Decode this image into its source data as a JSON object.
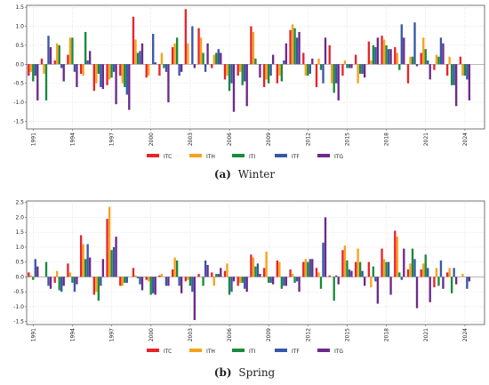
{
  "chart_data": [
    {
      "type": "bar",
      "panel_label": "(a)",
      "caption": "Winter",
      "ylim": [
        -1.7,
        1.55
      ],
      "yticks": [
        "-1.5",
        "-1.0",
        "-0.5",
        "0.0",
        "0.5",
        "1.0",
        "1.5"
      ],
      "ytick_values": [
        -1.5,
        -1.0,
        -0.5,
        0.0,
        0.5,
        1.0,
        1.5
      ],
      "grid": true,
      "legend_position": "bottom-center",
      "categories": [
        1991,
        1992,
        1993,
        1994,
        1995,
        1996,
        1997,
        1998,
        1999,
        2000,
        2001,
        2002,
        2003,
        2004,
        2005,
        2006,
        2007,
        2008,
        2009,
        2010,
        2011,
        2012,
        2013,
        2014,
        2015,
        2016,
        2017,
        2018,
        2019,
        2020,
        2021,
        2022,
        2023,
        2024,
        2025
      ],
      "xtick_labels": [
        "1991",
        "1994",
        "1997",
        "2000",
        "2003",
        "2006",
        "2009",
        "2012",
        "2015",
        "2018",
        "2021",
        "2024"
      ],
      "series": [
        {
          "name": "ITC",
          "color": "#e8242a",
          "values": [
            -0.3,
            0.15,
            0.1,
            0.25,
            -0.25,
            -0.7,
            -0.55,
            -0.3,
            1.25,
            -0.35,
            -0.3,
            0.45,
            1.45,
            0.95,
            -0.1,
            -0.4,
            -0.3,
            1.0,
            -0.6,
            -0.5,
            0.9,
            0.3,
            -0.6,
            0.5,
            -0.3,
            0.25,
            0.6,
            0.75,
            0.45,
            -0.5,
            0.3,
            -0.15,
            -0.3,
            0.2,
            0.0
          ]
        },
        {
          "name": "ITH",
          "color": "#f7a21b",
          "values": [
            -0.2,
            -0.25,
            0.55,
            0.7,
            -0.3,
            -0.5,
            -0.4,
            -0.5,
            0.65,
            -0.3,
            0.3,
            0.55,
            0.55,
            0.7,
            0.25,
            -0.3,
            -0.2,
            0.85,
            -0.4,
            -0.3,
            1.05,
            -0.3,
            0.15,
            -0.5,
            0.1,
            -0.5,
            0.1,
            0.65,
            0.3,
            0.2,
            0.7,
            0.25,
            0.2,
            -0.3,
            0.0
          ]
        },
        {
          "name": "ITI",
          "color": "#1b8a3a",
          "values": [
            -0.45,
            -0.95,
            0.5,
            0.7,
            0.85,
            -0.25,
            -0.35,
            -0.6,
            0.3,
            0.0,
            -0.1,
            0.7,
            0.0,
            0.3,
            0.3,
            -0.7,
            -0.55,
            0.15,
            -0.5,
            -0.45,
            0.95,
            -0.3,
            -0.15,
            -0.75,
            -0.1,
            -0.25,
            0.5,
            0.5,
            -0.15,
            0.2,
            0.4,
            0.2,
            -0.55,
            -0.3,
            0.0
          ]
        },
        {
          "name": "ITF",
          "color": "#3658a8",
          "values": [
            -0.3,
            0.75,
            -0.1,
            -0.2,
            0.1,
            -0.6,
            -0.2,
            -0.8,
            0.35,
            0.8,
            -0.2,
            -0.3,
            1.0,
            -0.2,
            0.4,
            -0.5,
            -0.45,
            0.0,
            -0.3,
            0.1,
            0.7,
            -0.25,
            -0.5,
            -0.5,
            -0.1,
            -0.25,
            0.45,
            0.4,
            1.05,
            1.1,
            0.1,
            0.7,
            -0.55,
            -0.4,
            0.0
          ]
        },
        {
          "name": "ITG",
          "color": "#6d2a8a",
          "values": [
            -0.95,
            0.45,
            -0.45,
            -0.6,
            0.35,
            -0.65,
            -1.05,
            -1.2,
            0.55,
            0.05,
            -1.0,
            -0.2,
            -0.1,
            0.55,
            0.3,
            -1.25,
            -1.1,
            -0.35,
            0.25,
            0.55,
            0.85,
            0.15,
            0.7,
            -0.95,
            -0.1,
            -0.35,
            0.7,
            0.4,
            0.7,
            -0.05,
            -0.4,
            0.55,
            -1.1,
            -0.95,
            0.0
          ]
        }
      ]
    },
    {
      "type": "bar",
      "panel_label": "(b)",
      "caption": "Spring",
      "ylim": [
        -1.6,
        2.55
      ],
      "yticks": [
        "-1.5",
        "-1.0",
        "-0.5",
        "0.0",
        "0.5",
        "1.0",
        "1.5",
        "2.0",
        "2.5"
      ],
      "ytick_values": [
        -1.5,
        -1.0,
        -0.5,
        0.0,
        0.5,
        1.0,
        1.5,
        2.0,
        2.5
      ],
      "grid": true,
      "legend_position": "bottom-center",
      "categories": [
        1991,
        1992,
        1993,
        1994,
        1995,
        1996,
        1997,
        1998,
        1999,
        2000,
        2001,
        2002,
        2003,
        2004,
        2005,
        2006,
        2007,
        2008,
        2009,
        2010,
        2011,
        2012,
        2013,
        2014,
        2015,
        2016,
        2017,
        2018,
        2019,
        2020,
        2021,
        2022,
        2023,
        2024,
        2025
      ],
      "xtick_labels": [
        "1991",
        "1994",
        "1997",
        "2000",
        "2003",
        "2006",
        "2009",
        "2012",
        "2015",
        "2018",
        "2021",
        "2024"
      ],
      "series": [
        {
          "name": "ITC",
          "color": "#e8242a",
          "values": [
            0.15,
            0.0,
            -0.2,
            0.45,
            1.4,
            -0.6,
            1.95,
            -0.3,
            0.3,
            -0.1,
            0.05,
            0.25,
            -0.15,
            0.1,
            0.15,
            0.2,
            -0.3,
            0.75,
            0.3,
            0.55,
            0.25,
            0.5,
            0.3,
            0.05,
            0.9,
            0.5,
            0.5,
            0.95,
            1.55,
            0.25,
            0.25,
            -0.35,
            0.15,
            0.0,
            0.0
          ]
        },
        {
          "name": "ITH",
          "color": "#f7a21b",
          "values": [
            0.05,
            0.0,
            0.2,
            0.15,
            1.1,
            -0.5,
            2.35,
            -0.3,
            0.05,
            -0.15,
            0.1,
            0.65,
            -0.1,
            0.0,
            -0.3,
            0.45,
            -0.2,
            0.65,
            0.85,
            0.5,
            0.1,
            0.6,
            0.15,
            0.0,
            1.05,
            0.95,
            -0.35,
            0.6,
            1.35,
            0.45,
            0.45,
            0.3,
            0.3,
            0.1,
            0.0
          ]
        },
        {
          "name": "ITI",
          "color": "#1b8a3a",
          "values": [
            -0.1,
            0.5,
            -0.45,
            -0.2,
            0.6,
            -0.8,
            0.9,
            -0.2,
            -0.05,
            -0.6,
            0.0,
            0.55,
            -0.3,
            -0.3,
            0.1,
            -0.6,
            -0.2,
            0.35,
            -0.2,
            -0.4,
            -0.2,
            0.5,
            -0.4,
            -0.8,
            0.55,
            0.5,
            0.35,
            0.5,
            0.15,
            0.95,
            0.75,
            -0.3,
            -0.55,
            0.0,
            0.0
          ]
        },
        {
          "name": "ITF",
          "color": "#3658a8",
          "values": [
            0.6,
            -0.3,
            -0.5,
            -0.5,
            1.1,
            -0.3,
            1.0,
            -0.2,
            -0.25,
            -0.55,
            -0.3,
            -0.3,
            -0.5,
            0.55,
            0.1,
            -0.5,
            -0.4,
            0.45,
            -0.2,
            -0.3,
            -0.15,
            0.6,
            1.15,
            0.05,
            0.25,
            0.2,
            -0.15,
            0.5,
            -0.1,
            0.6,
            0.3,
            0.55,
            0.3,
            -0.4,
            0.0
          ]
        },
        {
          "name": "ITG",
          "color": "#6d2a8a",
          "values": [
            0.35,
            -0.4,
            -0.3,
            -0.25,
            0.65,
            0.6,
            1.35,
            0.0,
            -0.45,
            -0.6,
            -0.3,
            -0.55,
            -1.45,
            0.4,
            0.3,
            -0.15,
            -0.5,
            0.1,
            -0.25,
            -0.3,
            -0.5,
            0.6,
            2.0,
            -0.25,
            0.2,
            -0.3,
            -0.9,
            -0.6,
            0.95,
            -1.05,
            -0.85,
            -0.4,
            -0.25,
            -0.15,
            0.0
          ]
        }
      ]
    }
  ],
  "legend": [
    {
      "name": "ITC",
      "color": "#e8242a"
    },
    {
      "name": "ITH",
      "color": "#f7a21b"
    },
    {
      "name": "ITI",
      "color": "#1b8a3a"
    },
    {
      "name": "ITF",
      "color": "#3658a8"
    },
    {
      "name": "ITG",
      "color": "#6d2a8a"
    }
  ]
}
